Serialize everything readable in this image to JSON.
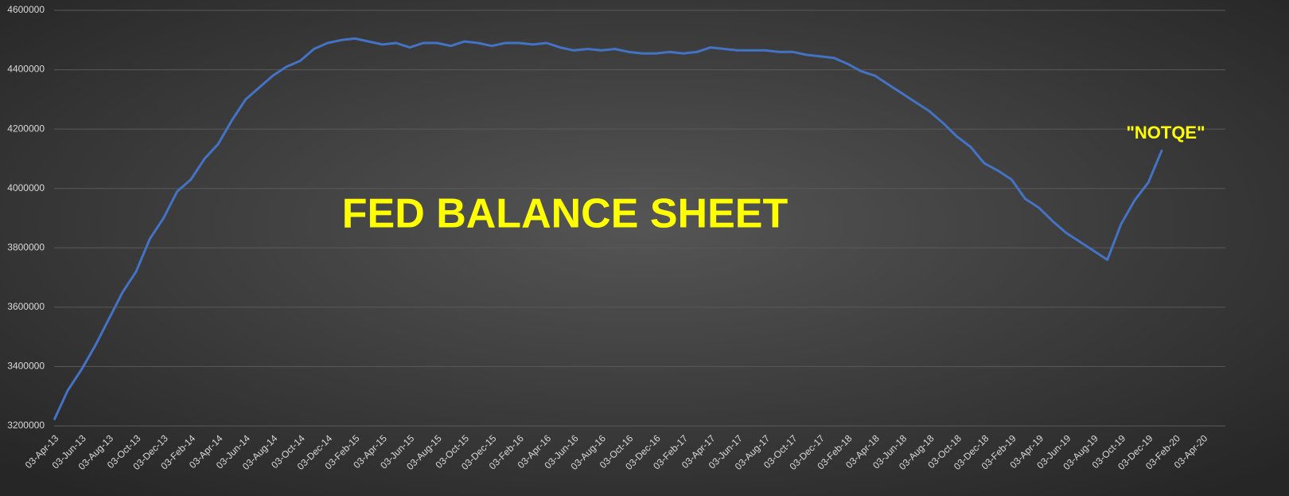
{
  "chart_data": {
    "type": "line",
    "annotations": [
      "FED BALANCE SHEET",
      "\"NOTQE\""
    ],
    "categories": [
      "03-Apr-13",
      null,
      "03-Jun-13",
      null,
      "03-Aug-13",
      null,
      "03-Oct-13",
      null,
      "03-Dec-13",
      null,
      "03-Feb-14",
      null,
      "03-Apr-14",
      null,
      "03-Jun-14",
      null,
      "03-Aug-14",
      null,
      "03-Oct-14",
      null,
      "03-Dec-14",
      null,
      "03-Feb-15",
      null,
      "03-Apr-15",
      null,
      "03-Jun-15",
      null,
      "03-Aug-15",
      null,
      "03-Oct-15",
      null,
      "03-Dec-15",
      null,
      "03-Feb-16",
      null,
      "03-Apr-16",
      null,
      "03-Jun-16",
      null,
      "03-Aug-16",
      null,
      "03-Oct-16",
      null,
      "03-Dec-16",
      null,
      "03-Feb-17",
      null,
      "03-Apr-17",
      null,
      "03-Jun-17",
      null,
      "03-Aug-17",
      null,
      "03-Oct-17",
      null,
      "03-Dec-17",
      null,
      "03-Feb-18",
      null,
      "03-Apr-18",
      null,
      "03-Jun-18",
      null,
      "03-Aug-18",
      null,
      "03-Oct-18",
      null,
      "03-Dec-18",
      null,
      "03-Feb-19",
      null,
      "03-Apr-19",
      null,
      "03-Jun-19",
      null,
      "03-Aug-19",
      null,
      "03-Oct-19",
      null,
      "03-Dec-19",
      null,
      "03-Feb-20",
      null,
      "03-Apr-20"
    ],
    "series": [
      {
        "color": "#4472c4",
        "values": [
          3220000,
          3320000,
          3390000,
          3470000,
          3560000,
          3650000,
          3720000,
          3830000,
          3900000,
          3990000,
          4030000,
          4100000,
          4150000,
          4230000,
          4300000,
          4340000,
          4380000,
          4410000,
          4430000,
          4470000,
          4490000,
          4500000,
          4505000,
          4495000,
          4485000,
          4490000,
          4475000,
          4490000,
          4490000,
          4480000,
          4495000,
          4490000,
          4480000,
          4490000,
          4490000,
          4485000,
          4490000,
          4475000,
          4465000,
          4470000,
          4465000,
          4470000,
          4460000,
          4455000,
          4455000,
          4460000,
          4455000,
          4460000,
          4475000,
          4470000,
          4465000,
          4465000,
          4465000,
          4460000,
          4460000,
          4450000,
          4445000,
          4440000,
          4420000,
          4395000,
          4380000,
          4350000,
          4320000,
          4290000,
          4260000,
          4220000,
          4175000,
          4140000,
          4085000,
          4060000,
          4030000,
          3965000,
          3935000,
          3890000,
          3850000,
          3820000,
          3790000,
          3760000,
          3880000,
          3960000,
          4020000,
          4130000,
          null,
          null,
          null
        ]
      }
    ],
    "ylim": [
      3200000,
      4600000
    ],
    "yticks": [
      3200000,
      3400000,
      3600000,
      3800000,
      4000000,
      4200000,
      4400000,
      4600000
    ],
    "grid": true
  }
}
